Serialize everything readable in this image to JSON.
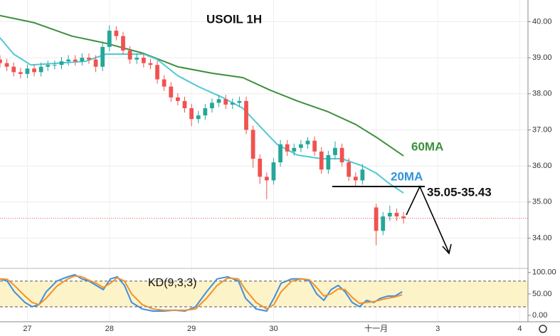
{
  "chart_data": [
    {
      "type": "candlestick",
      "title": "USOIL 1H",
      "x": [
        0,
        2,
        4,
        6,
        8,
        10,
        12,
        14,
        16,
        18,
        20,
        22,
        24,
        26,
        28,
        30,
        32,
        34,
        36,
        38,
        40,
        42,
        44,
        46,
        48,
        50,
        52,
        54,
        56,
        58,
        60,
        62,
        64,
        66,
        68,
        70,
        72,
        74,
        76,
        78,
        80,
        82,
        84,
        86,
        88,
        90,
        92,
        94,
        96,
        98,
        100,
        102,
        104,
        106,
        110,
        112,
        114,
        116,
        118
      ],
      "open": [
        38.95,
        38.85,
        38.75,
        38.6,
        38.55,
        38.7,
        38.6,
        38.75,
        38.8,
        38.8,
        38.9,
        38.95,
        38.9,
        39.0,
        38.95,
        38.75,
        39.3,
        39.75,
        39.6,
        39.2,
        38.95,
        39.0,
        38.85,
        38.8,
        38.4,
        38.2,
        37.9,
        37.8,
        37.6,
        37.3,
        37.4,
        37.6,
        37.75,
        37.85,
        37.7,
        37.75,
        37.8,
        37.0,
        36.2,
        35.7,
        35.6,
        36.1,
        36.6,
        36.4,
        36.5,
        36.6,
        36.7,
        36.4,
        35.9,
        36.3,
        36.5,
        36.1,
        35.7,
        35.6,
        34.85,
        34.2,
        34.6,
        34.7,
        34.6
      ],
      "high": [
        39.07,
        38.97,
        38.87,
        38.72,
        38.82,
        38.82,
        38.87,
        38.92,
        38.92,
        39.02,
        39.07,
        39.07,
        39.12,
        39.12,
        39.07,
        39.45,
        39.9,
        39.87,
        39.72,
        39.32,
        39.12,
        39.12,
        38.97,
        38.92,
        38.52,
        38.32,
        38.02,
        37.92,
        37.72,
        37.52,
        37.72,
        37.87,
        37.97,
        37.97,
        37.87,
        37.92,
        37.92,
        37.12,
        36.32,
        35.82,
        36.22,
        36.72,
        36.72,
        36.62,
        36.72,
        36.8,
        36.82,
        36.52,
        36.42,
        36.68,
        36.62,
        36.22,
        35.82,
        36.05,
        34.95,
        34.72,
        34.9,
        34.82,
        34.72
      ],
      "low": [
        38.73,
        38.63,
        38.48,
        38.43,
        38.43,
        38.48,
        38.48,
        38.63,
        38.68,
        38.68,
        38.78,
        38.78,
        38.78,
        38.83,
        38.6,
        38.63,
        39.18,
        39.48,
        39.08,
        38.83,
        38.83,
        38.73,
        38.68,
        38.28,
        38.08,
        37.78,
        37.68,
        37.48,
        37.1,
        37.18,
        37.28,
        37.48,
        37.63,
        37.58,
        37.58,
        37.63,
        36.88,
        35.95,
        35.5,
        35.08,
        35.48,
        35.98,
        36.28,
        36.28,
        36.38,
        36.48,
        36.28,
        35.78,
        35.78,
        36.18,
        35.98,
        35.58,
        35.42,
        35.48,
        33.8,
        34.08,
        34.48,
        34.48,
        34.4
      ],
      "close": [
        38.85,
        38.75,
        38.6,
        38.55,
        38.7,
        38.6,
        38.75,
        38.8,
        38.8,
        38.9,
        38.95,
        38.9,
        39.0,
        38.95,
        38.75,
        39.3,
        39.75,
        39.6,
        39.2,
        38.95,
        39.0,
        38.85,
        38.8,
        38.4,
        38.2,
        37.9,
        37.8,
        37.6,
        37.3,
        37.4,
        37.6,
        37.75,
        37.85,
        37.7,
        37.75,
        37.8,
        37.0,
        36.2,
        35.7,
        35.6,
        36.1,
        36.6,
        36.4,
        36.5,
        36.6,
        36.7,
        36.4,
        35.9,
        36.3,
        36.5,
        36.1,
        35.7,
        35.6,
        35.9,
        34.2,
        34.6,
        34.7,
        34.6,
        34.55
      ],
      "up_color": "#26a69a",
      "down_color": "#ef5350",
      "xlim": [
        0,
        154.4
      ],
      "xticks": [
        {
          "value": 8,
          "label": "27"
        },
        {
          "value": 32,
          "label": "28"
        },
        {
          "value": 56,
          "label": "29"
        },
        {
          "value": 80,
          "label": "30"
        },
        {
          "value": 110,
          "label": "十一月"
        },
        {
          "value": 128,
          "label": "3"
        },
        {
          "value": 152,
          "label": "4"
        }
      ],
      "ylim": [
        33.2,
        40.6
      ],
      "yticks": [
        {
          "value": 34,
          "label": "34.00"
        },
        {
          "value": 35,
          "label": "35.00"
        },
        {
          "value": 36,
          "label": "36.00"
        },
        {
          "value": 37,
          "label": "37.00"
        },
        {
          "value": 38,
          "label": "38.00"
        },
        {
          "value": 39,
          "label": "39.00"
        },
        {
          "value": 40,
          "label": "40.00"
        }
      ],
      "grid": true,
      "lines": [
        {
          "name": "60MA",
          "color": "#3d8f3d",
          "x": [
            0,
            10,
            21,
            31,
            42,
            52,
            62,
            71,
            79,
            87,
            96,
            104,
            110,
            118
          ],
          "values": [
            40.17,
            39.97,
            39.6,
            39.4,
            39.12,
            38.75,
            38.57,
            38.45,
            38.1,
            37.8,
            37.5,
            37.15,
            36.8,
            36.28
          ]
        },
        {
          "name": "20MA",
          "color": "#4fc9d6",
          "x": [
            0,
            4,
            9,
            17,
            25,
            31,
            42,
            46,
            52,
            58,
            65,
            71,
            75,
            81,
            87,
            94,
            100,
            106,
            110,
            114,
            118
          ],
          "values": [
            39.55,
            39.1,
            38.8,
            38.85,
            38.9,
            39.1,
            39.1,
            38.95,
            38.5,
            38.2,
            37.9,
            37.6,
            37.2,
            36.6,
            36.3,
            36.2,
            36.2,
            36.0,
            35.8,
            35.5,
            35.25
          ]
        }
      ],
      "annotation": "35.05-35.43"
    },
    {
      "type": "line",
      "title": "KD(9,3,3)",
      "xlim": [
        0,
        154.4
      ],
      "ylim": [
        -15,
        108
      ],
      "yticks": [
        {
          "value": 0,
          "label": "0.00"
        },
        {
          "value": 50,
          "label": "50.00"
        },
        {
          "value": 100,
          "label": "100.00"
        }
      ],
      "band": [
        20,
        80
      ],
      "series": [
        {
          "color": "#3f8fe0",
          "x": [
            0,
            2.1,
            4.2,
            7.3,
            9.4,
            11.4,
            13.5,
            16.6,
            19.8,
            21.9,
            23.9,
            26,
            28.1,
            30.2,
            32.3,
            34.3,
            36.4,
            38.5,
            41.6,
            44.7,
            47.9,
            51,
            54.1,
            57.2,
            60.4,
            63.5,
            66.6,
            69.7,
            71.8,
            74.9,
            78,
            80.1,
            82.2,
            85.3,
            88.4,
            90.5,
            92.6,
            94.7,
            96.8,
            98.9,
            100.9,
            103,
            105.1,
            107.2,
            109.3,
            111.3,
            113.4,
            115.5,
            117.6
          ],
          "values": [
            85,
            80,
            55,
            30,
            20,
            25,
            55,
            80,
            90,
            95,
            85,
            80,
            70,
            60,
            85,
            90,
            70,
            30,
            15,
            10,
            10,
            12,
            10,
            20,
            55,
            85,
            90,
            80,
            40,
            15,
            10,
            40,
            75,
            85,
            85,
            80,
            50,
            35,
            60,
            70,
            55,
            30,
            20,
            35,
            30,
            40,
            45,
            45,
            55
          ]
        },
        {
          "color": "#f0922b",
          "x": [
            0,
            2.1,
            4.2,
            7.3,
            9.4,
            11.4,
            13.5,
            16.6,
            19.8,
            21.9,
            23.9,
            26,
            28.1,
            30.2,
            32.3,
            34.3,
            36.4,
            38.5,
            41.6,
            44.7,
            47.9,
            51,
            54.1,
            57.2,
            60.4,
            63.5,
            66.6,
            69.7,
            71.8,
            74.9,
            78,
            80.1,
            82.2,
            85.3,
            88.4,
            90.5,
            92.6,
            94.7,
            96.8,
            98.9,
            100.9,
            103,
            105.1,
            107.2,
            109.3,
            111.3,
            113.4,
            115.5,
            117.6
          ],
          "values": [
            85,
            84,
            70,
            45,
            30,
            25,
            40,
            68,
            85,
            92,
            90,
            82,
            75,
            65,
            75,
            88,
            80,
            50,
            25,
            15,
            12,
            12,
            12,
            15,
            40,
            70,
            87,
            85,
            60,
            30,
            15,
            25,
            55,
            80,
            85,
            83,
            65,
            45,
            50,
            62,
            60,
            42,
            28,
            30,
            32,
            36,
            40,
            43,
            48
          ]
        }
      ]
    }
  ]
}
